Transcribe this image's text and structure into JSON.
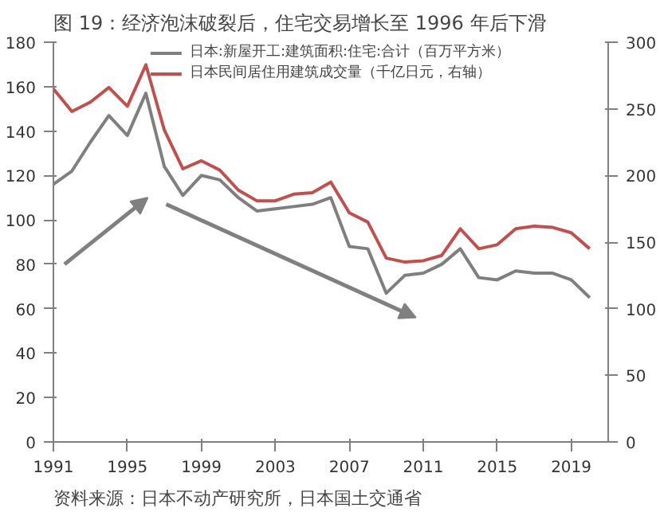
{
  "chart_data": {
    "type": "line",
    "title": "图 19：经济泡沫破裂后，住宅交易增长至 1996 年后下滑",
    "x": [
      1991,
      1992,
      1993,
      1994,
      1995,
      1996,
      1997,
      1998,
      1999,
      2000,
      2001,
      2002,
      2003,
      2004,
      2005,
      2006,
      2007,
      2008,
      2009,
      2010,
      2011,
      2012,
      2013,
      2014,
      2015,
      2016,
      2017,
      2018,
      2019,
      2020
    ],
    "series": [
      {
        "name": "日本:新屋开工:建筑面积:住宅:合计（百万平方米）",
        "color": "#7f7f7f",
        "values": [
          116,
          122,
          135,
          147,
          138,
          157,
          124,
          111,
          120,
          118,
          110,
          104,
          105,
          106,
          107,
          110,
          88,
          87,
          67,
          75,
          76,
          80,
          87,
          74,
          73,
          77,
          76,
          76,
          73,
          65
        ]
      },
      {
        "name": "日本民间居住用建筑成交量（千亿日元，右轴）",
        "color": "#c0504d",
        "axis": "y2",
        "values": [
          265,
          248,
          255,
          266,
          252,
          283,
          234,
          205,
          211,
          204,
          189,
          181,
          181,
          186,
          187,
          195,
          172,
          165,
          138,
          135,
          136,
          140,
          160,
          145,
          148,
          160,
          162,
          161,
          157,
          145
        ]
      }
    ],
    "xlim": [
      1991,
      2021
    ],
    "xticks": [
      1991,
      1995,
      1999,
      2003,
      2007,
      2011,
      2015,
      2019
    ],
    "ylim": [
      0,
      180
    ],
    "yticks": [
      0,
      20,
      40,
      60,
      80,
      100,
      120,
      140,
      160,
      180
    ],
    "y2lim": [
      0,
      300
    ],
    "y2ticks": [
      0,
      50,
      100,
      150,
      200,
      250,
      300
    ],
    "grid": false,
    "legend": "top",
    "marker": "none",
    "line_style": "solid",
    "annotations": [
      "资料来源：日本不动产研究所，日本国土交通省"
    ]
  }
}
